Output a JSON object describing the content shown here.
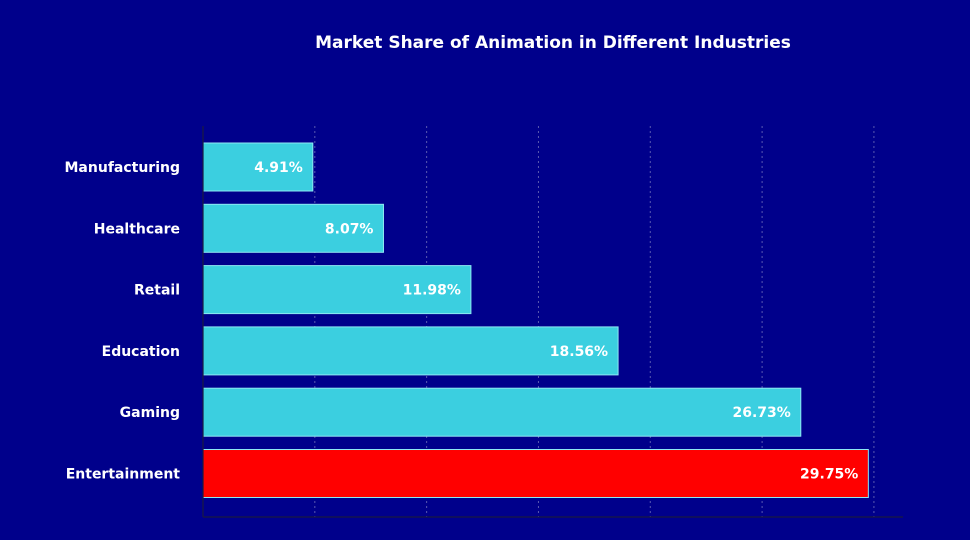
{
  "chart_data": {
    "type": "bar",
    "orientation": "horizontal",
    "title": "Market Share of Animation in Different Industries",
    "xlabel": "",
    "ylabel": "",
    "xlim": [
      0,
      31.3
    ],
    "grid": true,
    "categories": [
      "Manufacturing",
      "Healthcare",
      "Retail",
      "Education",
      "Gaming",
      "Entertainment"
    ],
    "values": [
      4.91,
      8.07,
      11.98,
      18.56,
      26.73,
      29.75
    ],
    "value_labels": [
      "4.91%",
      "8.07%",
      "11.98%",
      "18.56%",
      "26.73%",
      "29.75%"
    ],
    "colors": [
      "#3bcfe0",
      "#3bcfe0",
      "#3bcfe0",
      "#3bcfe0",
      "#3bcfe0",
      "#ff0000"
    ],
    "background": "#00008b"
  }
}
